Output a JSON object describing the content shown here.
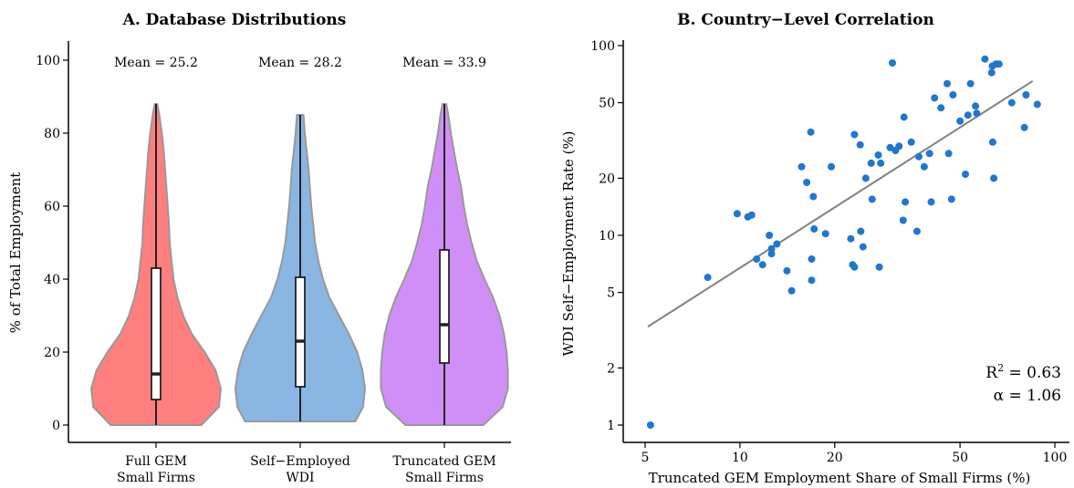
{
  "chart_data": [
    {
      "type": "violin",
      "title": "A.  Database Distributions",
      "ylabel": "% of Total Employment",
      "ylim": [
        0,
        105
      ],
      "yticks": [
        0,
        20,
        40,
        60,
        80,
        100
      ],
      "violins": [
        {
          "label_lines": [
            "Full GEM",
            "Small Firms"
          ],
          "mean_label": "Mean = 25.2",
          "color": "#FF7F7F",
          "min": 0,
          "max": 88,
          "q1": 7,
          "median": 14,
          "q3": 43,
          "profile": [
            [
              0,
              0.7
            ],
            [
              5,
              0.97
            ],
            [
              10,
              1.0
            ],
            [
              15,
              0.92
            ],
            [
              20,
              0.75
            ],
            [
              25,
              0.55
            ],
            [
              30,
              0.42
            ],
            [
              35,
              0.33
            ],
            [
              40,
              0.27
            ],
            [
              45,
              0.24
            ],
            [
              50,
              0.21
            ],
            [
              55,
              0.2
            ],
            [
              60,
              0.18
            ],
            [
              65,
              0.16
            ],
            [
              70,
              0.14
            ],
            [
              75,
              0.12
            ],
            [
              80,
              0.09
            ],
            [
              85,
              0.05
            ],
            [
              88,
              0.02
            ]
          ]
        },
        {
          "label_lines": [
            "Self−Employed",
            "WDI"
          ],
          "mean_label": "Mean = 28.2",
          "color": "#8AB6E4",
          "min": 1,
          "max": 85,
          "q1": 10.5,
          "median": 23,
          "q3": 40.5,
          "profile": [
            [
              1,
              0.85
            ],
            [
              5,
              0.97
            ],
            [
              10,
              1.0
            ],
            [
              15,
              0.96
            ],
            [
              20,
              0.88
            ],
            [
              25,
              0.75
            ],
            [
              30,
              0.6
            ],
            [
              35,
              0.45
            ],
            [
              40,
              0.35
            ],
            [
              45,
              0.28
            ],
            [
              50,
              0.23
            ],
            [
              55,
              0.2
            ],
            [
              60,
              0.17
            ],
            [
              65,
              0.15
            ],
            [
              70,
              0.13
            ],
            [
              75,
              0.1
            ],
            [
              80,
              0.07
            ],
            [
              85,
              0.05
            ]
          ]
        },
        {
          "label_lines": [
            "Truncated GEM",
            "Small Firms"
          ],
          "mean_label": "Mean = 33.9",
          "color": "#D08FF7",
          "min": 0,
          "max": 88,
          "q1": 17,
          "median": 27.5,
          "q3": 48,
          "profile": [
            [
              0,
              0.6
            ],
            [
              5,
              0.9
            ],
            [
              10,
              0.98
            ],
            [
              15,
              0.98
            ],
            [
              20,
              0.96
            ],
            [
              25,
              0.92
            ],
            [
              30,
              0.85
            ],
            [
              35,
              0.75
            ],
            [
              40,
              0.62
            ],
            [
              45,
              0.5
            ],
            [
              50,
              0.42
            ],
            [
              55,
              0.35
            ],
            [
              60,
              0.3
            ],
            [
              65,
              0.26
            ],
            [
              70,
              0.2
            ],
            [
              75,
              0.15
            ],
            [
              80,
              0.1
            ],
            [
              85,
              0.06
            ],
            [
              88,
              0.03
            ]
          ]
        }
      ]
    },
    {
      "type": "scatter",
      "title": "B.  Country−Level Correlation",
      "xlabel": "Truncated GEM Employment Share of Small Firms (%)",
      "ylabel": "WDI Self−Employment Rate (%)",
      "xscale": "log",
      "yscale": "log",
      "xlim": [
        4.3,
        95
      ],
      "ylim": [
        0.83,
        110
      ],
      "xticks": [
        5,
        10,
        20,
        50,
        100
      ],
      "yticks": [
        1,
        2,
        5,
        10,
        20,
        50,
        100
      ],
      "point_color": "#1F77CF",
      "line_color": "#808080",
      "fit": {
        "x": [
          5.1,
          85
        ],
        "y": [
          3.3,
          65
        ]
      },
      "annotation_r2": "R",
      "annotation_r2_sup": "2",
      "annotation_r2_value": " = 0.63",
      "annotation_alpha": "α = 1.06",
      "points": [
        [
          5.2,
          1.0
        ],
        [
          7.9,
          6.0
        ],
        [
          9.8,
          13.0
        ],
        [
          10.6,
          12.5
        ],
        [
          10.9,
          12.8
        ],
        [
          11.3,
          7.5
        ],
        [
          11.8,
          7.0
        ],
        [
          12.4,
          10.0
        ],
        [
          12.6,
          8.5
        ],
        [
          12.6,
          8.0
        ],
        [
          13.1,
          9.0
        ],
        [
          14.1,
          6.5
        ],
        [
          14.6,
          5.1
        ],
        [
          15.7,
          23.0
        ],
        [
          16.3,
          19.0
        ],
        [
          16.8,
          35.0
        ],
        [
          16.9,
          7.5
        ],
        [
          16.9,
          5.8
        ],
        [
          17.1,
          16.0
        ],
        [
          17.2,
          10.8
        ],
        [
          18.7,
          10.2
        ],
        [
          19.5,
          23.0
        ],
        [
          22.5,
          9.6
        ],
        [
          22.8,
          7.0
        ],
        [
          23.1,
          6.8
        ],
        [
          23.1,
          34.0
        ],
        [
          24.1,
          30.0
        ],
        [
          24.2,
          10.5
        ],
        [
          24.6,
          8.7
        ],
        [
          25.1,
          20.0
        ],
        [
          26.1,
          24.0
        ],
        [
          26.3,
          15.5
        ],
        [
          27.5,
          26.5
        ],
        [
          27.7,
          6.8
        ],
        [
          28.0,
          24.0
        ],
        [
          30.0,
          29.0
        ],
        [
          30.5,
          81.0
        ],
        [
          31.2,
          28.0
        ],
        [
          32.0,
          29.5
        ],
        [
          33.0,
          12.0
        ],
        [
          33.2,
          42.0
        ],
        [
          33.5,
          15.0
        ],
        [
          35.0,
          31.0
        ],
        [
          36.5,
          10.5
        ],
        [
          37.0,
          26.0
        ],
        [
          38.5,
          23.0
        ],
        [
          40.0,
          27.0
        ],
        [
          40.5,
          15.0
        ],
        [
          41.5,
          53.0
        ],
        [
          43.5,
          47.0
        ],
        [
          45.5,
          63.0
        ],
        [
          46.0,
          27.0
        ],
        [
          47.0,
          15.5
        ],
        [
          47.5,
          55.0
        ],
        [
          50.0,
          40.0
        ],
        [
          52.0,
          21.0
        ],
        [
          53.0,
          43.0
        ],
        [
          54.0,
          63.0
        ],
        [
          56.0,
          48.0
        ],
        [
          56.5,
          44.0
        ],
        [
          60.0,
          85.0
        ],
        [
          63.0,
          72.0
        ],
        [
          63.3,
          78.0
        ],
        [
          63.5,
          31.0
        ],
        [
          64.0,
          20.0
        ],
        [
          65.0,
          80.0
        ],
        [
          66.5,
          80.0
        ],
        [
          73.0,
          50.0
        ],
        [
          80.0,
          37.0
        ],
        [
          81.0,
          55.0
        ],
        [
          88.0,
          49.0
        ]
      ]
    }
  ]
}
